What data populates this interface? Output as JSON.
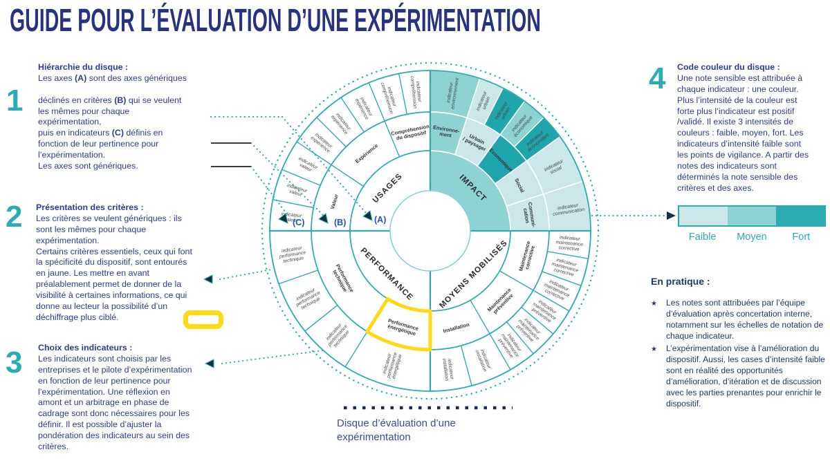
{
  "title": "GUIDE POUR L’ÉVALUATION D’UNE EXPÉRIMENTATION",
  "colors": {
    "accent_teal": "#2aacb2",
    "navy_text": "#2e3a96",
    "title_navy": "#283380",
    "teal_light": "#cbe7e9",
    "teal_medium": "#8fd2d4",
    "teal_dark": "#1fa5ac",
    "highlight_yellow": "#ffd915",
    "abc_blue": "#2053c5",
    "dark_dots": "#1c2b4a"
  },
  "steps": [
    {
      "num": "1",
      "title": "Hiérarchie du disque :",
      "body": "Les axes **(A)** sont des axes génériques\n\ndéclinés en critères **(B)** qui se veulent\nles mêmes pour chaque\nexpérimentation,\npuis en indicateurs **(C)** définis en\nfonction de leur pertinence pour\nl’expérimentation.\nLes axes sont génériques."
    },
    {
      "num": "2",
      "title": "Présentation des critères :",
      "body": "Les critères se veulent génériques : ils\nsont les mêmes pour chaque\nexpérimentation.\nCertains critères essentiels, ceux qui  font\nla spécificité du dispositif, sont  entourés\nen jaune. Les mettre en avant\npréalablement permet de donner de la\nvisibilité à certaines informations, ce  qui\ndonne au lecteur la possibilité d’un\ndéchiffrage plus ciblé."
    },
    {
      "num": "3",
      "title": "Choix des indicateurs :",
      "body": "Les indicateurs sont choisis par les\nentreprises et le pilote  d’expérimentation\nen fonction de leur  pertinence pour\nl’expérimentation. Une  réflexion en\namont et un arbitrage en  phase de\ncadrage sont donc  nécessaires pour les\ndéfinir. Il est  possible d’ajuster la\npondération des  indicateurs au sein des\ncritères."
    },
    {
      "num": "4",
      "title": "Code couleur du disque :",
      "body": "Une note sensible est attribuée à\nchaque indicateur : une couleur.\nPlus l’intensité de la couleur est\nforte plus l’indicateur est positif\n/validé. Il existe 3 intensités de\ncouleurs : faible, moyen, fort. Les\nindicateurs d’intensité faible sont\nles points de vigilance. A partir  des\nnotes des indicateurs sont\ndéterminés la note sensible des\ncritères et des axes."
    }
  ],
  "legend": {
    "items": [
      {
        "label": "Faible",
        "color": "#cbe7e9"
      },
      {
        "label": "Moyen",
        "color": "#8fd2d4"
      },
      {
        "label": "Fort",
        "color": "#2aacb2"
      }
    ]
  },
  "pratique": {
    "title": "En pratique :",
    "bullet_icon": "★",
    "bullets": [
      "Les notes sont attribuées par l’équipe\nd’évaluation après concertation interne,\nnotamment sur les échelles de notation de\nchaque indicateur.",
      "L’expérimentation vise à l’amélioration du\ndispositif. Aussi, les cases d’intensité faible\nsont en réalité des opportunités\nd’amélioration, d’itération et de discussion\navec les parties prenantes pour enrichir le\ndispositif."
    ]
  },
  "caption": "Disque d’évaluation d’une\nexpérimentation",
  "disk": {
    "highlight_color": "#ffd915",
    "abc": [
      {
        "text": "(C)"
      },
      {
        "text": "(B)"
      },
      {
        "text": "(A)"
      }
    ],
    "axes": [
      {
        "label": "USAGES",
        "a0": 270,
        "a1": 360,
        "fill": "#ffffff"
      },
      {
        "label": "IMPACT",
        "a0": 0,
        "a1": 90,
        "fill": "#8fd2d4"
      },
      {
        "label": "MOYENS MOBILISÉS",
        "a0": 90,
        "a1": 180,
        "fill": "#ffffff"
      },
      {
        "label": "PERFORMANCE",
        "a0": 180,
        "a1": 270,
        "fill": "#ffffff"
      }
    ],
    "criteria": [
      {
        "label": "Environne-\nment",
        "a0": 0,
        "a1": 18,
        "fill": "#8fd2d4"
      },
      {
        "label": "Urbain\n/ paysager",
        "a0": 18,
        "a1": 36,
        "fill": "#cbe7e9"
      },
      {
        "label": "Economique",
        "a0": 36,
        "a1": 54,
        "fill": "#1fa5ac"
      },
      {
        "label": "Social",
        "a0": 54,
        "a1": 72,
        "fill": "#cbe7e9"
      },
      {
        "label": "Communi-\ncation",
        "a0": 72,
        "a1": 90,
        "fill": "#cbe7e9"
      },
      {
        "label": "Maintenance\ncorrective",
        "a0": 90,
        "a1": 120,
        "fill": "#ffffff"
      },
      {
        "label": "Maintenance\npréventive",
        "a0": 120,
        "a1": 150,
        "fill": "#ffffff"
      },
      {
        "label": "Installation",
        "a0": 150,
        "a1": 180,
        "fill": "#ffffff"
      },
      {
        "label": "Performance\nénergétique",
        "a0": 180,
        "a1": 212,
        "fill": "#ffffff",
        "highlight": true
      },
      {
        "label": "Performance\ntechnique",
        "a0": 212,
        "a1": 270,
        "fill": "#ffffff"
      },
      {
        "label": "Valeur",
        "a0": 270,
        "a1": 303.75,
        "fill": "#ffffff"
      },
      {
        "label": "Expérience",
        "a0": 303.75,
        "a1": 337.5,
        "fill": "#ffffff"
      },
      {
        "label": "Compréhension\ndu dispositif",
        "a0": 337.5,
        "a1": 360,
        "fill": "#ffffff"
      }
    ],
    "indicators": [
      {
        "label": "indicateur\nenvironnement",
        "a0": 0,
        "a1": 18,
        "fill": "#8fd2d4"
      },
      {
        "label": "indicateur\nurbain",
        "a0": 18,
        "a1": 27,
        "fill": "#cbe7e9"
      },
      {
        "label": "indicateur\nurbain",
        "a0": 27,
        "a1": 36,
        "fill": "#1fa5ac"
      },
      {
        "label": "indicateur\néconomique",
        "a0": 36,
        "a1": 45,
        "fill": "#8fd2d4"
      },
      {
        "label": "indicateur\néconomique",
        "a0": 45,
        "a1": 54,
        "fill": "#1fa5ac"
      },
      {
        "label": "indicateur\nsocial",
        "a0": 54,
        "a1": 72,
        "fill": "#cbe7e9"
      },
      {
        "label": "indicateur\ncommunication",
        "a0": 72,
        "a1": 90,
        "fill": "#cbe7e9"
      },
      {
        "label": "indicateur\nmaintenance\ncorrective",
        "a0": 90,
        "a1": 100,
        "fill": "#ffffff"
      },
      {
        "label": "indicateur\nmaintenance\ncorrective",
        "a0": 100,
        "a1": 110,
        "fill": "#ffffff"
      },
      {
        "label": "indicateur\nmaintenance\ncorrective",
        "a0": 110,
        "a1": 120,
        "fill": "#ffffff"
      },
      {
        "label": "indicateur\nmaintenance\npréventive",
        "a0": 120,
        "a1": 130,
        "fill": "#ffffff"
      },
      {
        "label": "indicateur\nmaintenance\npréventive",
        "a0": 130,
        "a1": 140,
        "fill": "#ffffff"
      },
      {
        "label": "indicateur\nmaintenance\npréventive",
        "a0": 140,
        "a1": 150,
        "fill": "#ffffff"
      },
      {
        "label": "indicateur\ninstallation",
        "a0": 150,
        "a1": 165,
        "fill": "#ffffff"
      },
      {
        "label": "indicateur\ninstallation",
        "a0": 165,
        "a1": 180,
        "fill": "#ffffff"
      },
      {
        "label": "indicateur\nperformance\nénergétique",
        "a0": 180,
        "a1": 212,
        "fill": "#ffffff"
      },
      {
        "label": "indicateur\nperformance\ntechnique",
        "a0": 212,
        "a1": 231.3,
        "fill": "#ffffff"
      },
      {
        "label": "indicateur\nperformance\ntechnique",
        "a0": 231.3,
        "a1": 250.7,
        "fill": "#ffffff"
      },
      {
        "label": "indicateur\nperformance\ntechnique",
        "a0": 250.7,
        "a1": 270,
        "fill": "#ffffff"
      },
      {
        "label": "indicateur\nvaleur",
        "a0": 270,
        "a1": 281.25,
        "fill": "#ffffff"
      },
      {
        "label": "indicateur\nvaleur",
        "a0": 281.25,
        "a1": 292.5,
        "fill": "#ffffff"
      },
      {
        "label": "indicateur\nvaleur",
        "a0": 292.5,
        "a1": 303.75,
        "fill": "#ffffff"
      },
      {
        "label": "indicateur\nexpérience",
        "a0": 303.75,
        "a1": 315,
        "fill": "#ffffff"
      },
      {
        "label": "indicateur\nexpérience",
        "a0": 315,
        "a1": 326.25,
        "fill": "#ffffff"
      },
      {
        "label": "indicateur\nexpérience",
        "a0": 326.25,
        "a1": 337.5,
        "fill": "#ffffff"
      },
      {
        "label": "indicateur\ncompréhension",
        "a0": 337.5,
        "a1": 348.75,
        "fill": "#ffffff"
      },
      {
        "label": "indicateur\ncompréhension",
        "a0": 348.75,
        "a1": 360,
        "fill": "#ffffff"
      }
    ]
  }
}
